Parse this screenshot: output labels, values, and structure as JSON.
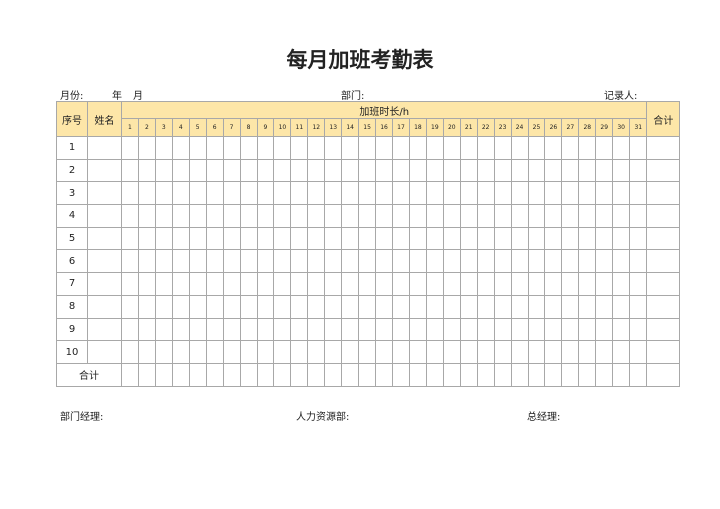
{
  "title": "每月加班考勤表",
  "meta": {
    "month_label": "月份:",
    "year": "年",
    "month": "月",
    "dept": "部门:",
    "recorder": "记录人:"
  },
  "header": {
    "seq": "序号",
    "name": "姓名",
    "overtime": "加班时长/h",
    "total": "合计",
    "days": [
      "1",
      "2",
      "3",
      "4",
      "5",
      "6",
      "7",
      "8",
      "9",
      "10",
      "11",
      "12",
      "13",
      "14",
      "15",
      "16",
      "17",
      "18",
      "19",
      "20",
      "21",
      "22",
      "23",
      "24",
      "25",
      "26",
      "27",
      "28",
      "29",
      "30",
      "31"
    ]
  },
  "rows": [
    "1",
    "2",
    "3",
    "4",
    "5",
    "6",
    "7",
    "8",
    "9",
    "10"
  ],
  "total_row": "合计",
  "footer": {
    "dept_manager": "部门经理:",
    "hr": "人力资源部:",
    "gm": "总经理:"
  },
  "colors": {
    "header_bg": "#fde6a8"
  }
}
